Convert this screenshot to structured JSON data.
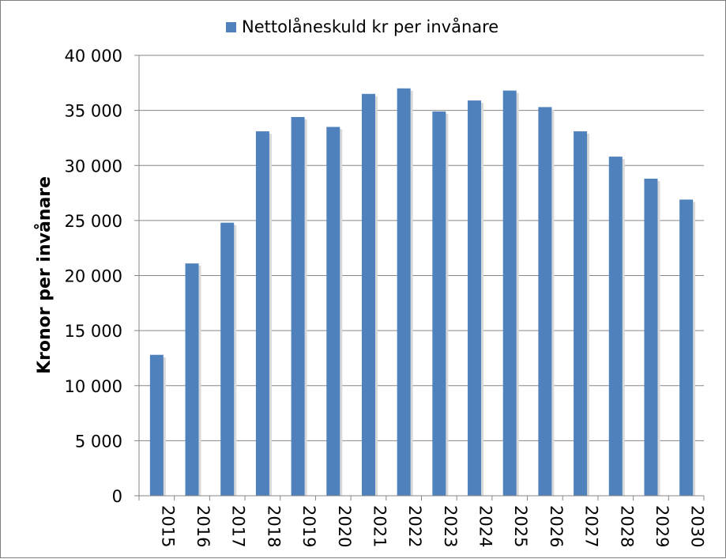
{
  "chart_data": {
    "type": "bar",
    "title": "",
    "xlabel": "",
    "ylabel": "Kronor per invånare",
    "ylim": [
      0,
      40000
    ],
    "yticks": [
      0,
      5000,
      10000,
      15000,
      20000,
      25000,
      30000,
      35000,
      40000
    ],
    "ytick_labels": [
      "0",
      "5 000",
      "10 000",
      "15 000",
      "20 000",
      "25 000",
      "30 000",
      "35 000",
      "40 000"
    ],
    "grid": true,
    "legend_position": "top",
    "categories": [
      "2015",
      "2016",
      "2017",
      "2018",
      "2019",
      "2020",
      "2021",
      "2022",
      "2023",
      "2024",
      "2025",
      "2026",
      "2027",
      "2028",
      "2029",
      "2030"
    ],
    "series": [
      {
        "name": "Nettolåneskuld kr per invånare",
        "color": "#4f81bd",
        "values": [
          12800,
          21100,
          24800,
          33100,
          34400,
          33500,
          36500,
          37000,
          34900,
          35900,
          36800,
          35300,
          33100,
          30800,
          28800,
          26900
        ]
      }
    ]
  }
}
